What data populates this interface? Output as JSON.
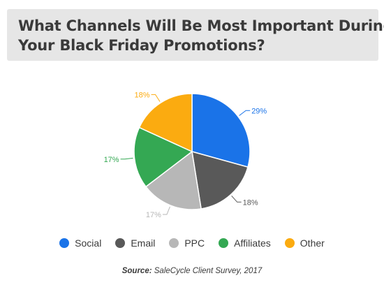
{
  "title": {
    "line1": "What Channels Will Be Most Important During",
    "line2": "Your Black Friday Promotions?"
  },
  "source": {
    "label": "Source:",
    "text": "SaleCycle Client Survey, 2017"
  },
  "chart_data": {
    "type": "pie",
    "title": "What Channels Will Be Most Important During Your Black Friday Promotions?",
    "legend_position": "bottom",
    "slices": [
      {
        "name": "Social",
        "value": 29,
        "label": "29%",
        "color": "#1a73e8"
      },
      {
        "name": "Email",
        "value": 18,
        "label": "18%",
        "color": "#595959"
      },
      {
        "name": "PPC",
        "value": 17,
        "label": "17%",
        "color": "#b7b7b7"
      },
      {
        "name": "Affiliates",
        "value": 17,
        "label": "17%",
        "color": "#34a853"
      },
      {
        "name": "Other",
        "value": 18,
        "label": "18%",
        "color": "#fbab10"
      }
    ]
  }
}
